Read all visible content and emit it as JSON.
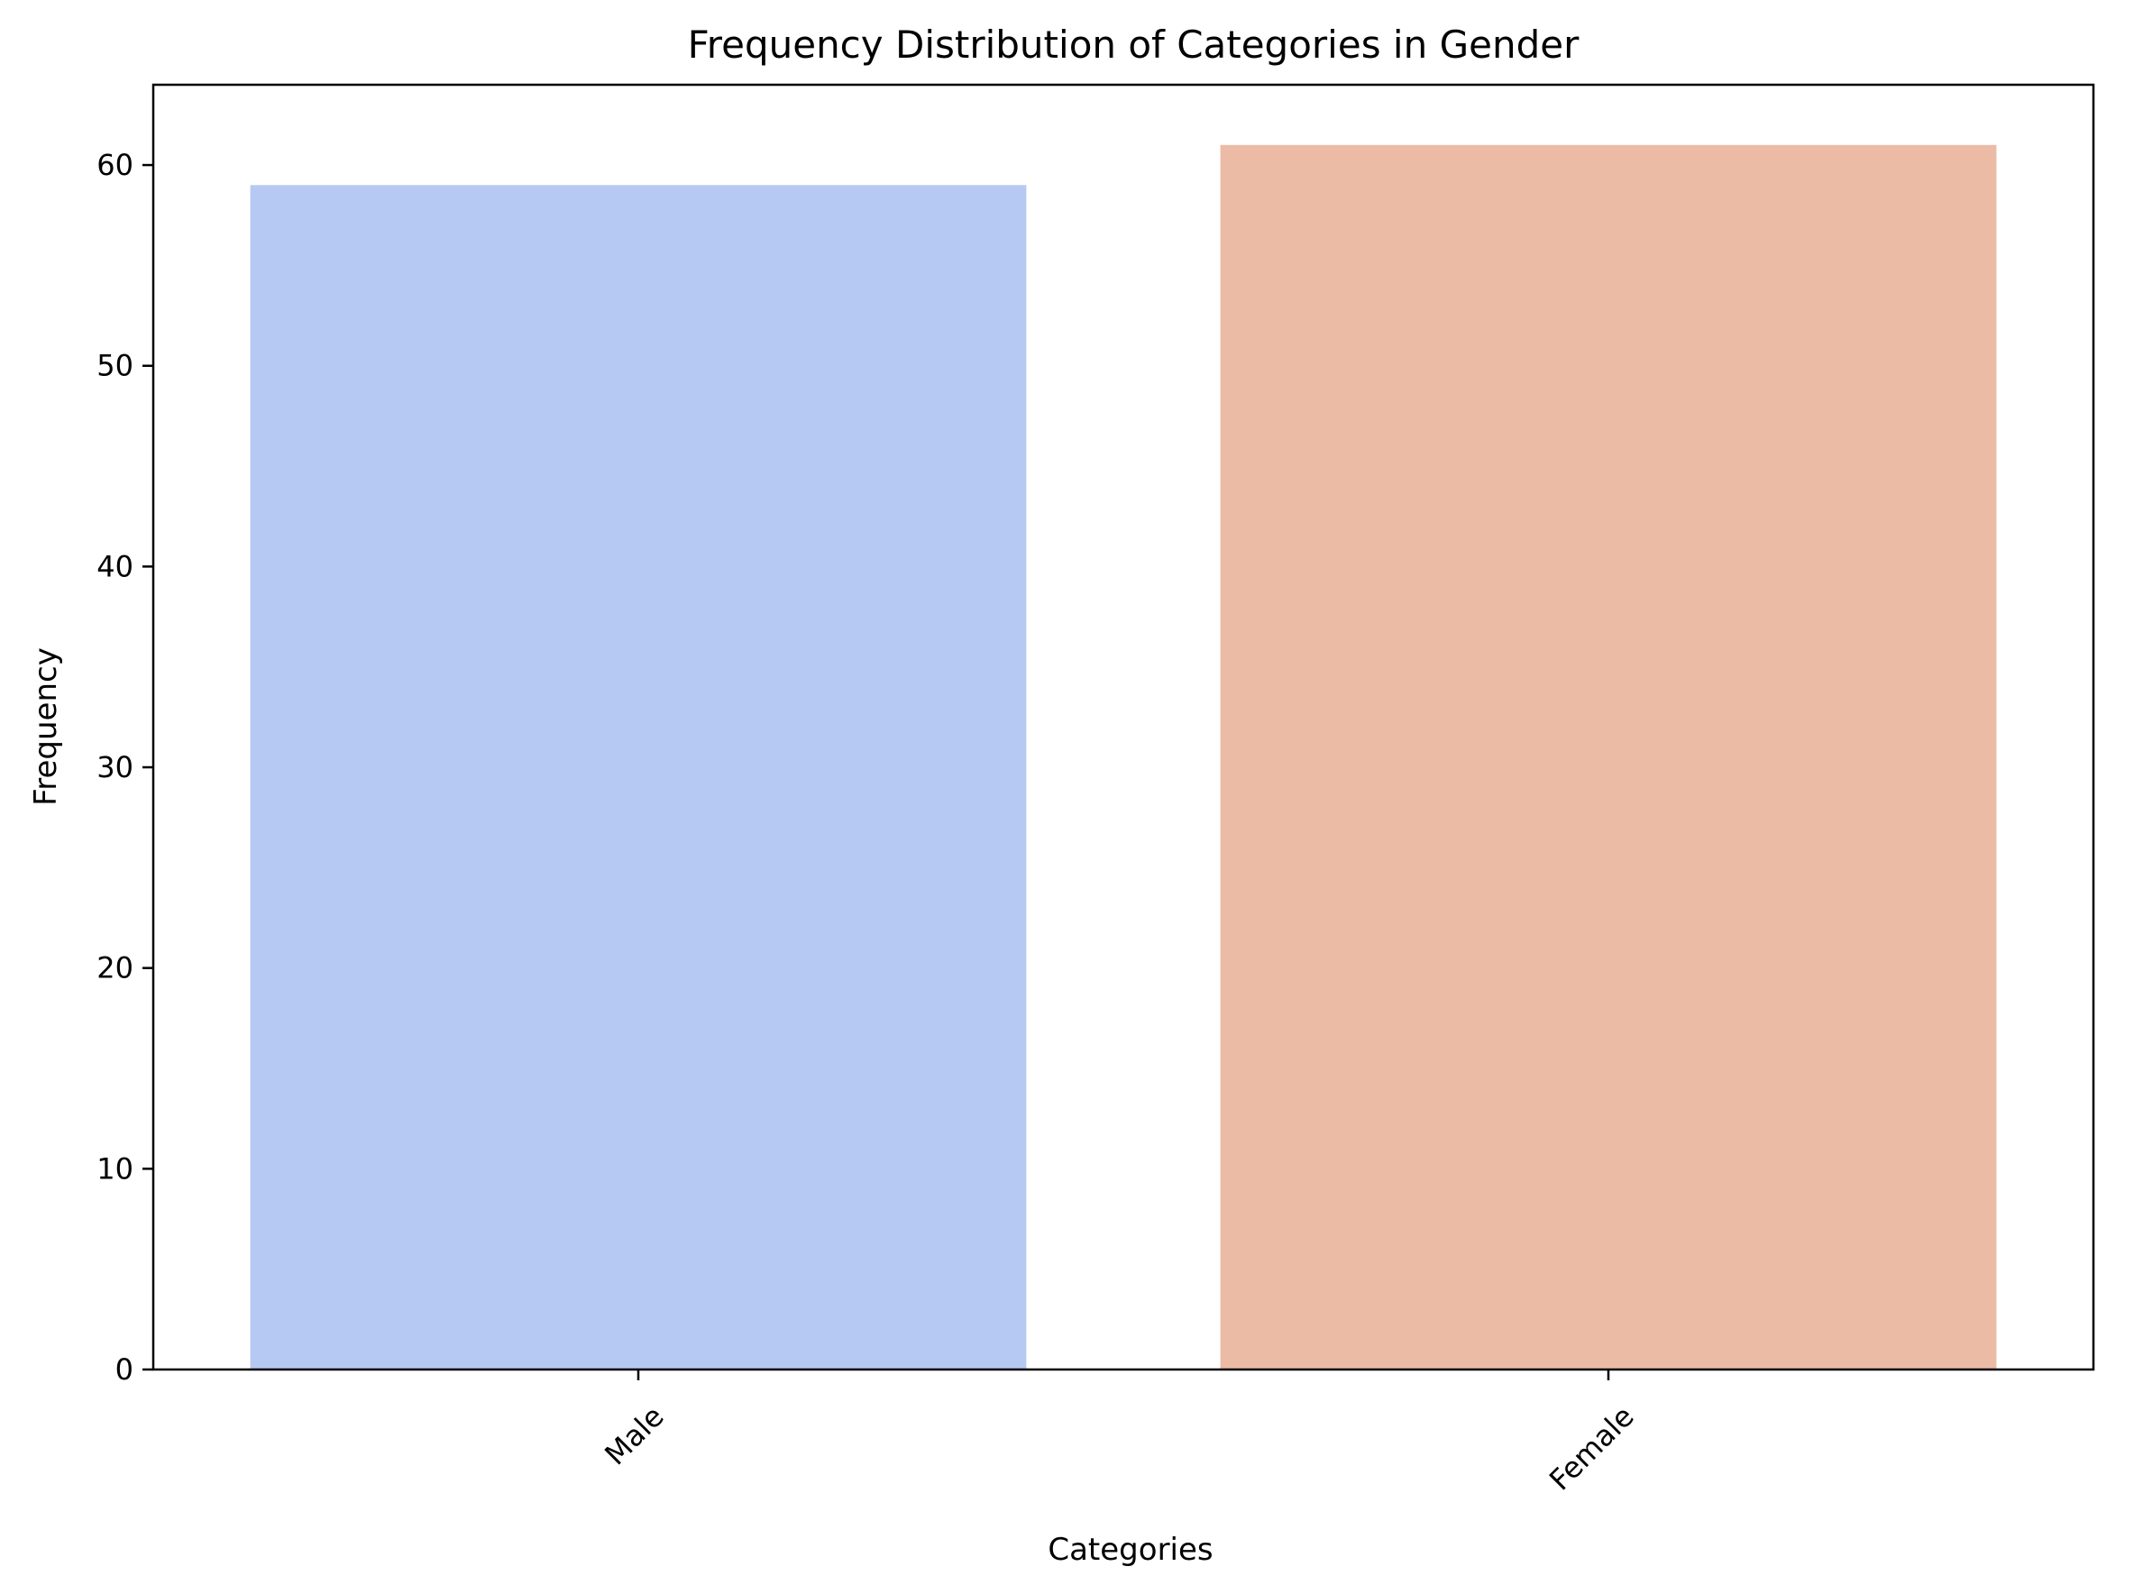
{
  "chart_data": {
    "type": "bar",
    "title": "Frequency Distribution of Categories in Gender",
    "xlabel": "Categories",
    "ylabel": "Frequency",
    "categories": [
      "Male",
      "Female"
    ],
    "values": [
      59,
      61
    ],
    "colors": [
      "#b5c9f2",
      "#ebbba6"
    ],
    "ylim": [
      0,
      64
    ],
    "yticks": [
      0,
      10,
      20,
      30,
      40,
      50,
      60
    ],
    "x_tick_rotation": "45 degrees",
    "grid": false,
    "legend": "none"
  }
}
